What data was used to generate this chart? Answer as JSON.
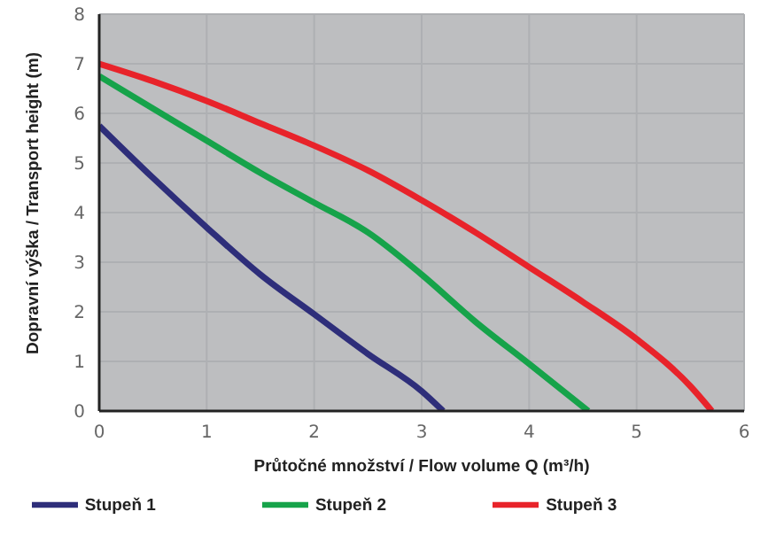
{
  "chart_data": {
    "type": "line",
    "xlabel": "Průtočné množství / Flow volume Q (m³/h)",
    "ylabel": "Dopravní výška / Transport height (m)",
    "series": [
      {
        "name": "Stupeň 1",
        "color": "#2e2e7a",
        "x": [
          0,
          0.5,
          1,
          1.5,
          2,
          2.5,
          3,
          3.2
        ],
        "values": [
          5.75,
          4.7,
          3.7,
          2.75,
          1.95,
          1.15,
          0.4,
          0
        ]
      },
      {
        "name": "Stupeň 2",
        "color": "#16a34a",
        "x": [
          0,
          0.5,
          1,
          1.5,
          2,
          2.5,
          3,
          3.5,
          4,
          4.55
        ],
        "values": [
          6.75,
          6.1,
          5.45,
          4.8,
          4.2,
          3.6,
          2.75,
          1.8,
          0.95,
          0
        ]
      },
      {
        "name": "Stupeň 3",
        "color": "#e8232a",
        "x": [
          0,
          0.5,
          1,
          1.5,
          2,
          2.5,
          3,
          3.5,
          4,
          4.5,
          5,
          5.5,
          5.7
        ],
        "values": [
          7,
          6.65,
          6.25,
          5.8,
          5.35,
          4.85,
          4.25,
          3.6,
          2.9,
          2.2,
          1.45,
          0.5,
          0
        ]
      }
    ],
    "xlim": [
      0,
      6
    ],
    "xticks": [
      0,
      1,
      2,
      3,
      4,
      5,
      6
    ],
    "ylim": [
      0,
      8
    ],
    "yticks": [
      0,
      1,
      2,
      3,
      4,
      5,
      6,
      7,
      8
    ],
    "grid": true,
    "legend": "bottom",
    "marker": "none",
    "line_style": "solid"
  }
}
